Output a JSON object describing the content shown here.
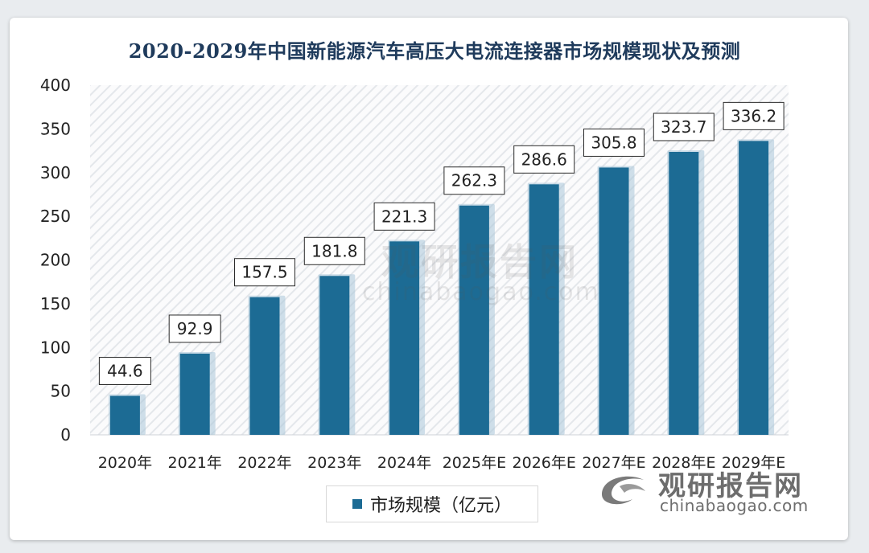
{
  "title": "2020-2029年中国新能源汽车高压大电流连接器市场规模现状及预测",
  "legend_label": "市场规模（亿元）",
  "watermark": {
    "brand": "观研报告网",
    "url": "chinabaogao.com"
  },
  "colors": {
    "bar": "#1c6b94",
    "bar_shadow": "#a9c7d8",
    "title": "#1f3b5c",
    "plot_hatch": "#e3e6ea"
  },
  "chart_data": {
    "type": "bar",
    "title": "2020-2029年中国新能源汽车高压大电流连接器市场规模现状及预测",
    "categories": [
      "2020年",
      "2021年",
      "2022年",
      "2023年",
      "2024年",
      "2025年E",
      "2026年E",
      "2027年E",
      "2028年E",
      "2029年E"
    ],
    "series": [
      {
        "name": "市场规模（亿元）",
        "values": [
          44.6,
          92.9,
          157.5,
          181.8,
          221.3,
          262.3,
          286.6,
          305.8,
          323.7,
          336.2
        ]
      }
    ],
    "data_labels": [
      "44.6",
      "92.9",
      "157.5",
      "181.8",
      "221.3",
      "262.3",
      "286.6",
      "305.8",
      "323.7",
      "336.2"
    ],
    "yticks": [
      0,
      50,
      100,
      150,
      200,
      250,
      300,
      350,
      400
    ],
    "ylim": [
      0,
      400
    ],
    "xlabel": "",
    "ylabel": "",
    "grid": false,
    "legend_position": "bottom"
  }
}
